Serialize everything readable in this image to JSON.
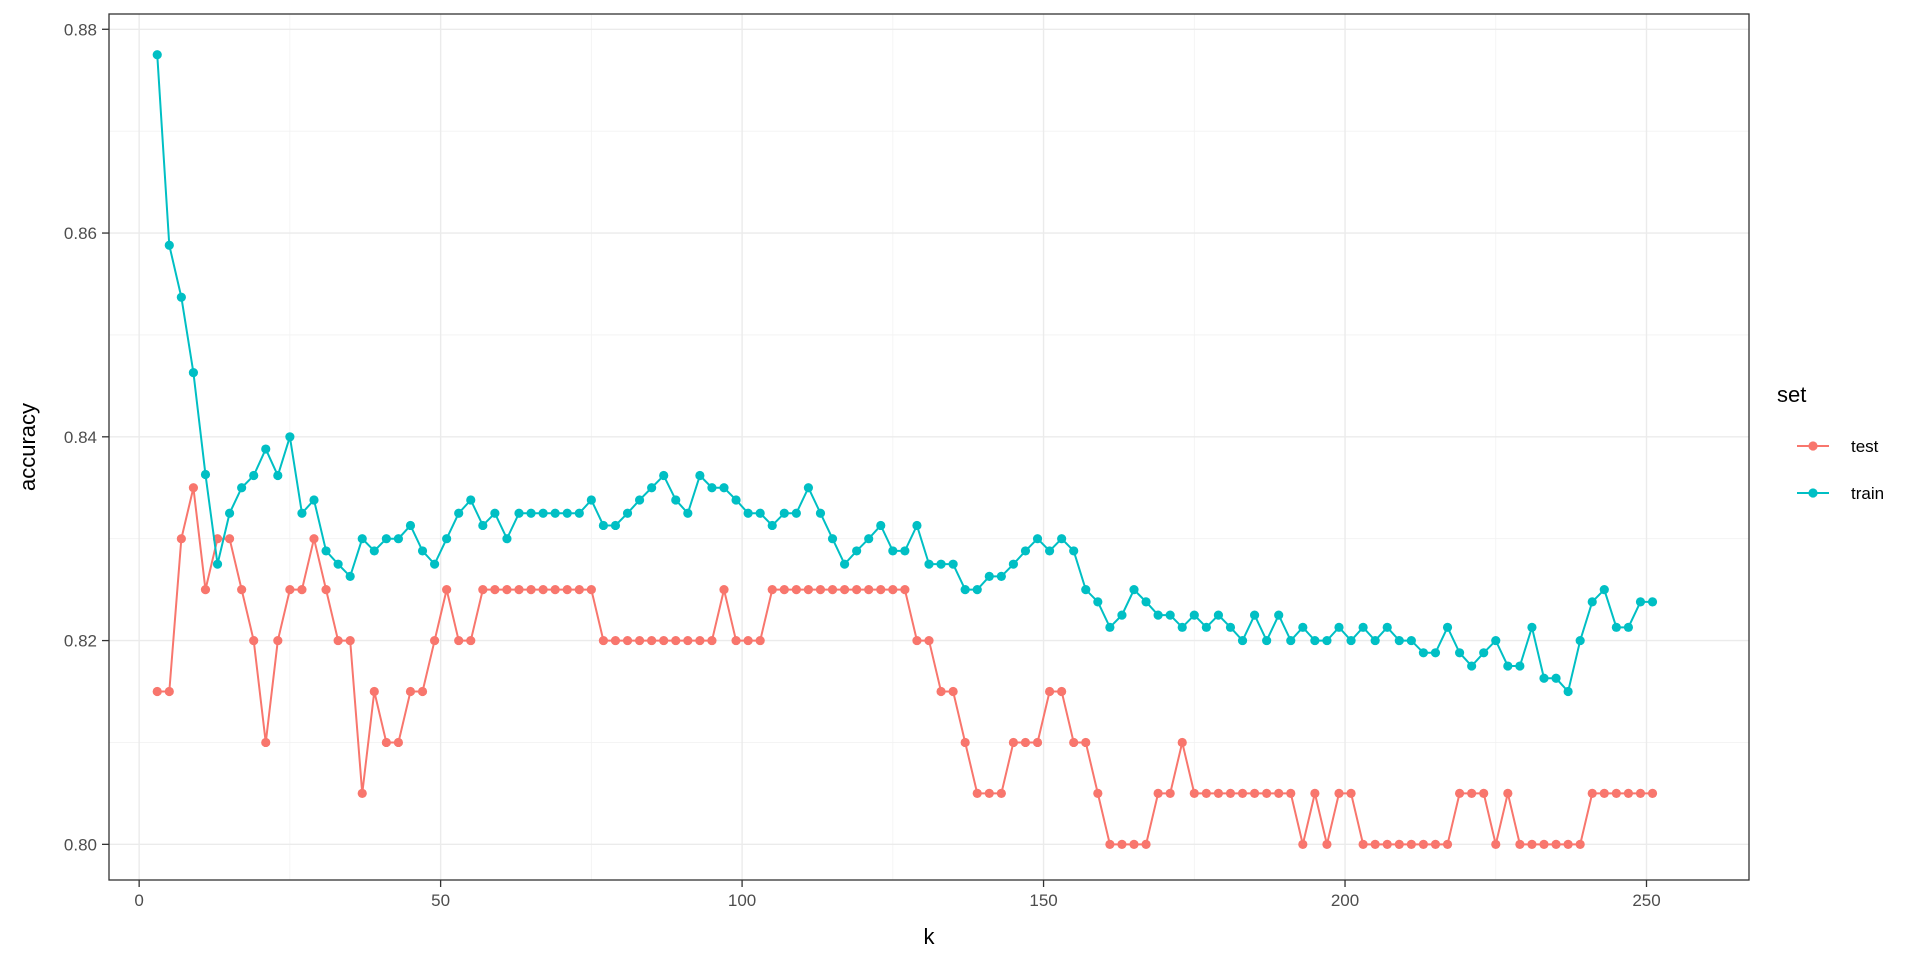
{
  "chart_data": {
    "type": "line",
    "title": "",
    "xlabel": "k",
    "ylabel": "accuracy",
    "xlim": [
      -5,
      267
    ],
    "ylim": [
      0.7965,
      0.8815
    ],
    "x_ticks": [
      0,
      50,
      100,
      150,
      200,
      250
    ],
    "y_ticks": [
      0.8,
      0.82,
      0.84,
      0.86,
      0.88
    ],
    "y_tick_labels": [
      "0.80",
      "0.82",
      "0.84",
      "0.86",
      "0.88"
    ],
    "grid": true,
    "legend": {
      "title": "set",
      "position": "right"
    },
    "x": [
      3,
      5,
      7,
      9,
      11,
      13,
      15,
      17,
      19,
      21,
      23,
      25,
      27,
      29,
      31,
      33,
      35,
      37,
      39,
      41,
      43,
      45,
      47,
      49,
      51,
      53,
      55,
      57,
      59,
      61,
      63,
      65,
      67,
      69,
      71,
      73,
      75,
      77,
      79,
      81,
      83,
      85,
      87,
      89,
      91,
      93,
      95,
      97,
      99,
      101,
      103,
      105,
      107,
      109,
      111,
      113,
      115,
      117,
      119,
      121,
      123,
      125,
      127,
      129,
      131,
      133,
      135,
      137,
      139,
      141,
      143,
      145,
      147,
      149,
      151,
      153,
      155,
      157,
      159,
      161,
      163,
      165,
      167,
      169,
      171,
      173,
      175,
      177,
      179,
      181,
      183,
      185,
      187,
      189,
      191,
      193,
      195,
      197,
      199,
      201,
      203,
      205,
      207,
      209,
      211,
      213,
      215,
      217,
      219,
      221,
      223,
      225,
      227,
      229,
      231,
      233,
      235,
      237,
      239,
      241,
      243,
      245,
      247,
      249,
      251
    ],
    "series": [
      {
        "name": "test",
        "color": "#F8766D",
        "values": [
          0.815,
          0.815,
          0.83,
          0.835,
          0.825,
          0.83,
          0.83,
          0.825,
          0.82,
          0.81,
          0.82,
          0.825,
          0.825,
          0.83,
          0.825,
          0.82,
          0.82,
          0.805,
          0.815,
          0.81,
          0.81,
          0.815,
          0.815,
          0.82,
          0.825,
          0.82,
          0.82,
          0.825,
          0.825,
          0.825,
          0.825,
          0.825,
          0.825,
          0.825,
          0.825,
          0.825,
          0.825,
          0.82,
          0.82,
          0.82,
          0.82,
          0.82,
          0.82,
          0.82,
          0.82,
          0.82,
          0.82,
          0.825,
          0.82,
          0.82,
          0.82,
          0.825,
          0.825,
          0.825,
          0.825,
          0.825,
          0.825,
          0.825,
          0.825,
          0.825,
          0.825,
          0.825,
          0.825,
          0.82,
          0.82,
          0.815,
          0.815,
          0.81,
          0.805,
          0.805,
          0.805,
          0.81,
          0.81,
          0.81,
          0.815,
          0.815,
          0.81,
          0.81,
          0.805,
          0.8,
          0.8,
          0.8,
          0.8,
          0.805,
          0.805,
          0.81,
          0.805,
          0.805,
          0.805,
          0.805,
          0.805,
          0.805,
          0.805,
          0.805,
          0.805,
          0.8,
          0.805,
          0.8,
          0.805,
          0.805,
          0.8,
          0.8,
          0.8,
          0.8,
          0.8,
          0.8,
          0.8,
          0.8,
          0.805,
          0.805,
          0.805,
          0.8,
          0.805,
          0.8,
          0.8,
          0.8,
          0.8,
          0.8,
          0.8,
          0.805,
          0.805,
          0.805,
          0.805,
          0.805,
          0.805
        ]
      },
      {
        "name": "train",
        "color": "#00BFC4",
        "values": [
          0.8775,
          0.8588,
          0.8537,
          0.8463,
          0.8363,
          0.8275,
          0.8325,
          0.835,
          0.8362,
          0.8388,
          0.8362,
          0.84,
          0.8325,
          0.8338,
          0.8288,
          0.8275,
          0.8263,
          0.83,
          0.8288,
          0.83,
          0.83,
          0.8313,
          0.8288,
          0.8275,
          0.83,
          0.8325,
          0.8338,
          0.8313,
          0.8325,
          0.83,
          0.8325,
          0.8325,
          0.8325,
          0.8325,
          0.8325,
          0.8325,
          0.8338,
          0.8313,
          0.8313,
          0.8325,
          0.8338,
          0.835,
          0.8362,
          0.8338,
          0.8325,
          0.8362,
          0.835,
          0.835,
          0.8338,
          0.8325,
          0.8325,
          0.8313,
          0.8325,
          0.8325,
          0.835,
          0.8325,
          0.83,
          0.8275,
          0.8288,
          0.83,
          0.8313,
          0.8288,
          0.8288,
          0.8313,
          0.8275,
          0.8275,
          0.8275,
          0.825,
          0.825,
          0.8263,
          0.8263,
          0.8275,
          0.8288,
          0.83,
          0.8288,
          0.83,
          0.8288,
          0.825,
          0.8238,
          0.8213,
          0.8225,
          0.825,
          0.8238,
          0.8225,
          0.8225,
          0.8213,
          0.8225,
          0.8213,
          0.8225,
          0.8213,
          0.82,
          0.8225,
          0.82,
          0.8225,
          0.82,
          0.8213,
          0.82,
          0.82,
          0.8213,
          0.82,
          0.8213,
          0.82,
          0.8213,
          0.82,
          0.82,
          0.8188,
          0.8188,
          0.8213,
          0.8188,
          0.8175,
          0.8188,
          0.82,
          0.8175,
          0.8175,
          0.8213,
          0.8163,
          0.8163,
          0.815,
          0.82,
          0.8238,
          0.825,
          0.8213,
          0.8213,
          0.8238,
          0.8238
        ]
      }
    ]
  }
}
